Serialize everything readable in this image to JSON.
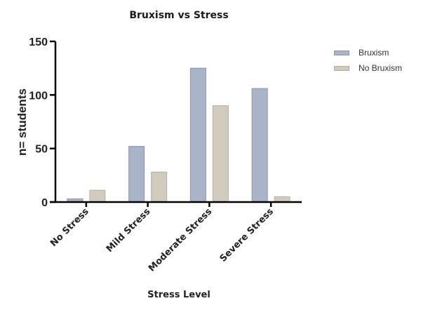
{
  "chart_data": {
    "type": "bar",
    "title": "Bruxism vs Stress",
    "xlabel": "Stress Level",
    "ylabel": "n= students",
    "categories": [
      "No Stress",
      "Mild Stress",
      "Moderate Stress",
      "Severe Stress"
    ],
    "series": [
      {
        "name": "Bruxism",
        "values": [
          3,
          52,
          125,
          106
        ],
        "color": "#a9b4c8",
        "border": "#8a96ad"
      },
      {
        "name": "No Bruxism",
        "values": [
          11,
          28,
          90,
          5
        ],
        "color": "#d2cbbd",
        "border": "#b8ae9d"
      }
    ],
    "ylim": [
      0,
      150
    ],
    "yticks": [
      0,
      50,
      100,
      150
    ],
    "grid": false,
    "legend_position": "right"
  }
}
